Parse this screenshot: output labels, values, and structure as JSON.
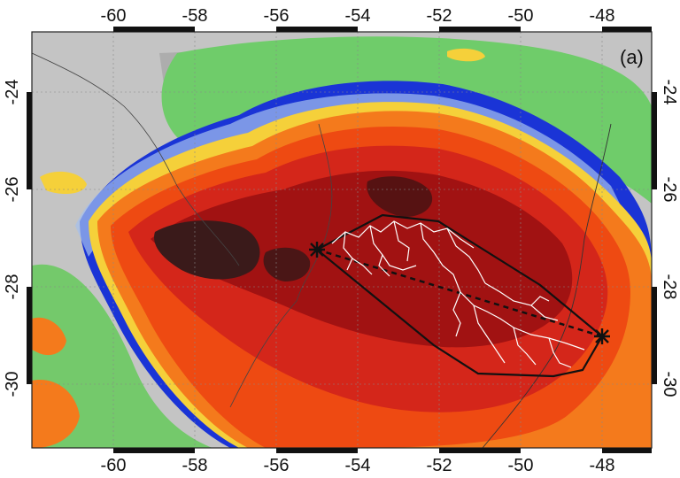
{
  "panel_label": "(a)",
  "axes": {
    "x_ticks_top": [
      "-60",
      "-58",
      "-56",
      "-54",
      "-52",
      "-50",
      "-48"
    ],
    "x_ticks_bottom": [
      "-60",
      "-58",
      "-56",
      "-54",
      "-52",
      "-50",
      "-48"
    ],
    "y_ticks_left": [
      "-24",
      "-26",
      "-28",
      "-30"
    ],
    "y_ticks_right": [
      "-24",
      "-26",
      "-28",
      "-30"
    ]
  },
  "map": {
    "lon_range": [
      -62,
      -47.4
    ],
    "lat_range": [
      -31.2,
      -22.8
    ],
    "start_marker": {
      "lon": -55.0,
      "lat": -27.4
    },
    "end_marker": {
      "lon": -48.0,
      "lat": -29.0
    },
    "colors": {
      "cold_core": "#3a1a1a",
      "dark_red": "#a11212",
      "red": "#d4261a",
      "orange_red": "#ee4a12",
      "orange": "#f47a1c",
      "yellow": "#f7d23a",
      "blue": "#1530d8",
      "light_blue": "#9db8ec",
      "green": "#6fcc6a",
      "gray": "#bdbdbd"
    }
  }
}
